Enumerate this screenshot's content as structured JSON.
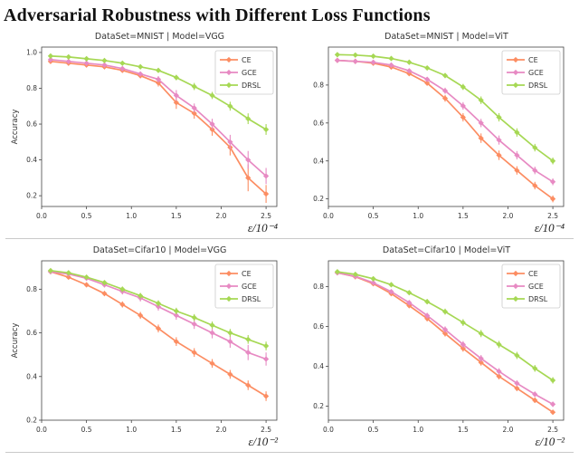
{
  "figure": {
    "title": "Adversarial Robustness with Different Loss Functions"
  },
  "accent_colors": {
    "CE": "#fc8d62",
    "GCE": "#e78ac3",
    "DRSL": "#a6d854"
  },
  "chart_data": [
    {
      "type": "line",
      "title": "DataSet=MNIST | Model=VGG",
      "xlabel": "ε/10⁻⁴",
      "ylabel": "Accuracy",
      "x": [
        0.1,
        0.3,
        0.5,
        0.7,
        0.9,
        1.1,
        1.3,
        1.5,
        1.7,
        1.9,
        2.1,
        2.3,
        2.5
      ],
      "xlim": [
        0.0,
        2.62
      ],
      "ylim": [
        0.14,
        1.03
      ],
      "xticks": [
        0.0,
        0.5,
        1.0,
        1.5,
        2.0,
        2.5
      ],
      "yticks": [
        0.2,
        0.4,
        0.6,
        0.8,
        1.0
      ],
      "grid": false,
      "legend_position": "upper right",
      "series": [
        {
          "name": "CE",
          "color": "#fc8d62",
          "values": [
            0.95,
            0.94,
            0.93,
            0.92,
            0.9,
            0.87,
            0.83,
            0.72,
            0.66,
            0.57,
            0.47,
            0.3,
            0.21
          ],
          "errors": [
            0.005,
            0.005,
            0.006,
            0.007,
            0.009,
            0.012,
            0.02,
            0.035,
            0.03,
            0.035,
            0.045,
            0.075,
            0.05
          ]
        },
        {
          "name": "GCE",
          "color": "#e78ac3",
          "values": [
            0.96,
            0.95,
            0.94,
            0.93,
            0.91,
            0.88,
            0.85,
            0.76,
            0.69,
            0.6,
            0.5,
            0.4,
            0.31
          ],
          "errors": [
            0.005,
            0.005,
            0.006,
            0.007,
            0.009,
            0.012,
            0.018,
            0.03,
            0.025,
            0.03,
            0.04,
            0.05,
            0.045
          ]
        },
        {
          "name": "DRSL",
          "color": "#a6d854",
          "values": [
            0.98,
            0.975,
            0.965,
            0.955,
            0.94,
            0.92,
            0.9,
            0.86,
            0.81,
            0.76,
            0.7,
            0.63,
            0.57
          ],
          "errors": [
            0.003,
            0.003,
            0.004,
            0.005,
            0.006,
            0.008,
            0.01,
            0.015,
            0.02,
            0.02,
            0.025,
            0.03,
            0.03
          ]
        }
      ]
    },
    {
      "type": "line",
      "title": "DataSet=MNIST | Model=ViT",
      "xlabel": "ε/10⁻⁴",
      "ylabel": "",
      "x": [
        0.1,
        0.3,
        0.5,
        0.7,
        0.9,
        1.1,
        1.3,
        1.5,
        1.7,
        1.9,
        2.1,
        2.3,
        2.5
      ],
      "xlim": [
        0.0,
        2.62
      ],
      "ylim": [
        0.16,
        1.0
      ],
      "xticks": [
        0.0,
        0.5,
        1.0,
        1.5,
        2.0,
        2.5
      ],
      "yticks": [
        0.2,
        0.4,
        0.6,
        0.8
      ],
      "grid": false,
      "legend_position": "upper right",
      "series": [
        {
          "name": "CE",
          "color": "#fc8d62",
          "values": [
            0.93,
            0.925,
            0.915,
            0.895,
            0.86,
            0.81,
            0.73,
            0.63,
            0.52,
            0.43,
            0.35,
            0.27,
            0.2
          ],
          "errors": [
            0.004,
            0.004,
            0.005,
            0.007,
            0.01,
            0.013,
            0.018,
            0.022,
            0.025,
            0.025,
            0.022,
            0.02,
            0.018
          ]
        },
        {
          "name": "GCE",
          "color": "#e78ac3",
          "values": [
            0.93,
            0.925,
            0.92,
            0.905,
            0.875,
            0.83,
            0.77,
            0.69,
            0.6,
            0.51,
            0.43,
            0.35,
            0.29
          ],
          "errors": [
            0.004,
            0.004,
            0.005,
            0.006,
            0.009,
            0.012,
            0.016,
            0.02,
            0.022,
            0.024,
            0.022,
            0.02,
            0.018
          ]
        },
        {
          "name": "DRSL",
          "color": "#a6d854",
          "values": [
            0.96,
            0.958,
            0.952,
            0.94,
            0.92,
            0.89,
            0.85,
            0.79,
            0.72,
            0.63,
            0.55,
            0.47,
            0.4
          ],
          "errors": [
            0.003,
            0.003,
            0.004,
            0.005,
            0.007,
            0.01,
            0.013,
            0.016,
            0.02,
            0.022,
            0.022,
            0.02,
            0.018
          ]
        }
      ]
    },
    {
      "type": "line",
      "title": "DataSet=Cifar10 | Model=VGG",
      "xlabel": "ε/10⁻²",
      "ylabel": "Accuracy",
      "x": [
        0.1,
        0.3,
        0.5,
        0.7,
        0.9,
        1.1,
        1.3,
        1.5,
        1.7,
        1.9,
        2.1,
        2.3,
        2.5
      ],
      "xlim": [
        0.0,
        2.62
      ],
      "ylim": [
        0.2,
        0.93
      ],
      "xticks": [
        0.0,
        0.5,
        1.0,
        1.5,
        2.0,
        2.5
      ],
      "yticks": [
        0.2,
        0.4,
        0.6,
        0.8
      ],
      "grid": false,
      "legend_position": "upper right",
      "series": [
        {
          "name": "CE",
          "color": "#fc8d62",
          "values": [
            0.88,
            0.855,
            0.82,
            0.78,
            0.73,
            0.68,
            0.62,
            0.56,
            0.51,
            0.46,
            0.41,
            0.36,
            0.31
          ],
          "errors": [
            0.006,
            0.008,
            0.01,
            0.012,
            0.014,
            0.016,
            0.018,
            0.02,
            0.02,
            0.02,
            0.02,
            0.022,
            0.022
          ]
        },
        {
          "name": "GCE",
          "color": "#e78ac3",
          "values": [
            0.88,
            0.87,
            0.85,
            0.82,
            0.79,
            0.76,
            0.72,
            0.68,
            0.64,
            0.6,
            0.56,
            0.51,
            0.48
          ],
          "errors": [
            0.006,
            0.008,
            0.01,
            0.012,
            0.014,
            0.016,
            0.018,
            0.02,
            0.022,
            0.025,
            0.028,
            0.035,
            0.03
          ]
        },
        {
          "name": "DRSL",
          "color": "#a6d854",
          "values": [
            0.885,
            0.875,
            0.855,
            0.83,
            0.8,
            0.77,
            0.735,
            0.7,
            0.67,
            0.635,
            0.6,
            0.57,
            0.54
          ],
          "errors": [
            0.005,
            0.006,
            0.008,
            0.01,
            0.012,
            0.013,
            0.014,
            0.015,
            0.016,
            0.017,
            0.018,
            0.02,
            0.02
          ]
        }
      ]
    },
    {
      "type": "line",
      "title": "DataSet=Cifar10 | Model=ViT",
      "xlabel": "ε/10⁻²",
      "ylabel": "",
      "x": [
        0.1,
        0.3,
        0.5,
        0.7,
        0.9,
        1.1,
        1.3,
        1.5,
        1.7,
        1.9,
        2.1,
        2.3,
        2.5
      ],
      "xlim": [
        0.0,
        2.62
      ],
      "ylim": [
        0.13,
        0.93
      ],
      "xticks": [
        0.0,
        0.5,
        1.0,
        1.5,
        2.0,
        2.5
      ],
      "yticks": [
        0.2,
        0.4,
        0.6,
        0.8
      ],
      "grid": false,
      "legend_position": "upper right",
      "series": [
        {
          "name": "CE",
          "color": "#fc8d62",
          "values": [
            0.87,
            0.85,
            0.815,
            0.765,
            0.705,
            0.64,
            0.565,
            0.49,
            0.42,
            0.35,
            0.29,
            0.23,
            0.17
          ],
          "errors": [
            0.005,
            0.006,
            0.008,
            0.01,
            0.012,
            0.014,
            0.015,
            0.016,
            0.016,
            0.015,
            0.014,
            0.013,
            0.012
          ]
        },
        {
          "name": "GCE",
          "color": "#e78ac3",
          "values": [
            0.87,
            0.852,
            0.82,
            0.775,
            0.72,
            0.655,
            0.585,
            0.51,
            0.44,
            0.375,
            0.315,
            0.26,
            0.21
          ],
          "errors": [
            0.005,
            0.006,
            0.008,
            0.01,
            0.012,
            0.014,
            0.016,
            0.017,
            0.017,
            0.016,
            0.015,
            0.014,
            0.013
          ]
        },
        {
          "name": "DRSL",
          "color": "#a6d854",
          "values": [
            0.875,
            0.862,
            0.84,
            0.81,
            0.77,
            0.725,
            0.675,
            0.62,
            0.565,
            0.51,
            0.455,
            0.39,
            0.33
          ],
          "errors": [
            0.004,
            0.005,
            0.007,
            0.009,
            0.011,
            0.013,
            0.015,
            0.017,
            0.018,
            0.018,
            0.018,
            0.017,
            0.016
          ]
        }
      ]
    }
  ]
}
